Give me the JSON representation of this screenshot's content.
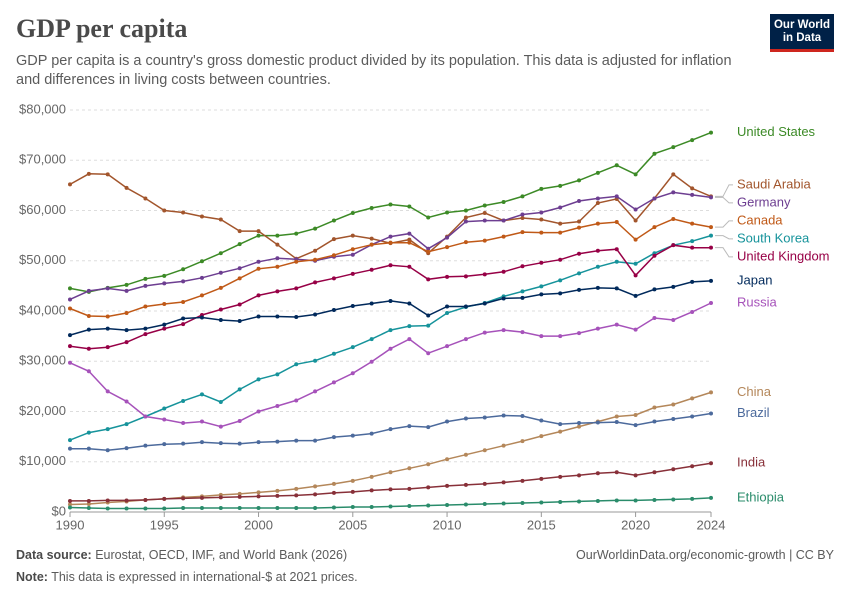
{
  "chart_data": {
    "type": "line",
    "title": "GDP per capita",
    "subtitle": "GDP per capita is a country's gross domestic product divided by its population. This data is adjusted for inflation and differences in living costs between countries.",
    "logo": [
      "Our World",
      "in Data"
    ],
    "source_label": "Data source:",
    "source": "Eurostat, OECD, IMF, and World Bank (2026)",
    "url": "OurWorldinData.org/economic-growth | CC BY",
    "note_label": "Note:",
    "note": "This data is expressed in international-$ at 2021 prices.",
    "grid": true,
    "xlim": [
      1990,
      2024
    ],
    "xticks": [
      1990,
      1995,
      2000,
      2005,
      2010,
      2015,
      2020,
      2024
    ],
    "ylim": [
      0,
      80000
    ],
    "yticks": [
      {
        "value": 0,
        "label": "$0"
      },
      {
        "value": 10000,
        "label": "$10,000"
      },
      {
        "value": 20000,
        "label": "$20,000"
      },
      {
        "value": 30000,
        "label": "$30,000"
      },
      {
        "value": 40000,
        "label": "$40,000"
      },
      {
        "value": 50000,
        "label": "$50,000"
      },
      {
        "value": 60000,
        "label": "$60,000"
      },
      {
        "value": 70000,
        "label": "$70,000"
      },
      {
        "value": 80000,
        "label": "$80,000"
      }
    ],
    "x": [
      1990,
      1991,
      1992,
      1993,
      1994,
      1995,
      1996,
      1997,
      1998,
      1999,
      2000,
      2001,
      2002,
      2003,
      2004,
      2005,
      2006,
      2007,
      2008,
      2009,
      2010,
      2011,
      2012,
      2013,
      2014,
      2015,
      2016,
      2017,
      2018,
      2019,
      2020,
      2021,
      2022,
      2023,
      2024
    ],
    "series": [
      {
        "name": "United States",
        "color": "#3c8a26",
        "values": [
          44500,
          43800,
          44600,
          45200,
          46400,
          47000,
          48300,
          49900,
          51500,
          53300,
          55000,
          55000,
          55400,
          56400,
          58000,
          59500,
          60500,
          61200,
          60800,
          58600,
          59600,
          60000,
          61000,
          61700,
          62800,
          64300,
          64900,
          66000,
          67500,
          69000,
          67200,
          71300,
          72600,
          74000,
          75500
        ]
      },
      {
        "name": "Saudi Arabia",
        "color": "#a2552c",
        "values": [
          65200,
          67300,
          67200,
          64500,
          62400,
          60000,
          59600,
          58800,
          58200,
          55900,
          55900,
          53200,
          50400,
          52000,
          54300,
          55000,
          54400,
          53500,
          54200,
          51500,
          54800,
          58600,
          59500,
          58000,
          58500,
          58200,
          57400,
          57800,
          61500,
          62300,
          58000,
          62400,
          67200,
          64400,
          62800
        ]
      },
      {
        "name": "Germany",
        "color": "#6d3e91",
        "values": [
          42300,
          44000,
          44500,
          44000,
          45000,
          45500,
          45900,
          46600,
          47600,
          48500,
          49800,
          50500,
          50300,
          50000,
          50800,
          51200,
          53200,
          54800,
          55400,
          52400,
          54600,
          57800,
          58000,
          58000,
          59200,
          59600,
          60600,
          61900,
          62400,
          62800,
          60200,
          62400,
          63600,
          63100,
          62600
        ]
      },
      {
        "name": "Canada",
        "color": "#c05917",
        "values": [
          40500,
          39000,
          38900,
          39600,
          40900,
          41400,
          41800,
          43100,
          44600,
          46500,
          48400,
          48800,
          49800,
          50200,
          51100,
          52300,
          53200,
          53600,
          53600,
          51800,
          52700,
          53700,
          54000,
          54800,
          55700,
          55600,
          55600,
          56600,
          57400,
          57700,
          54200,
          56700,
          58300,
          57400,
          56700
        ]
      },
      {
        "name": "South Korea",
        "color": "#16939b",
        "values": [
          14300,
          15800,
          16500,
          17500,
          19000,
          20600,
          22100,
          23400,
          21900,
          24400,
          26400,
          27400,
          29400,
          30100,
          31500,
          32800,
          34400,
          36200,
          37000,
          37100,
          39600,
          40800,
          41600,
          42900,
          43900,
          44900,
          46100,
          47500,
          48800,
          49800,
          49400,
          51500,
          53100,
          53900,
          55000
        ]
      },
      {
        "name": "United Kingdom",
        "color": "#970046",
        "values": [
          33000,
          32500,
          32800,
          33800,
          35400,
          36500,
          37400,
          39200,
          40300,
          41300,
          43100,
          43900,
          44500,
          45700,
          46500,
          47400,
          48200,
          49100,
          48800,
          46300,
          46800,
          46900,
          47300,
          47800,
          48900,
          49600,
          50200,
          51400,
          52000,
          52300,
          47100,
          51000,
          53100,
          52600,
          52600
        ]
      },
      {
        "name": "Japan",
        "color": "#00295b",
        "values": [
          35200,
          36300,
          36500,
          36200,
          36500,
          37300,
          38500,
          38700,
          38200,
          38000,
          38900,
          38900,
          38800,
          39300,
          40200,
          41000,
          41500,
          42000,
          41500,
          39100,
          40900,
          40900,
          41500,
          42500,
          42600,
          43300,
          43500,
          44200,
          44600,
          44500,
          43000,
          44300,
          44800,
          45800,
          46000
        ]
      },
      {
        "name": "Russia",
        "color": "#a652ba",
        "values": [
          29700,
          28000,
          24000,
          22000,
          19000,
          18400,
          17700,
          18000,
          17000,
          18100,
          20000,
          21100,
          22200,
          24000,
          25800,
          27600,
          29900,
          32500,
          34400,
          31600,
          33000,
          34400,
          35700,
          36200,
          35800,
          35000,
          35000,
          35600,
          36500,
          37300,
          36300,
          38600,
          38200,
          39800,
          41600
        ]
      },
      {
        "name": "China",
        "color": "#b4875a",
        "values": [
          1500,
          1600,
          1900,
          2100,
          2400,
          2600,
          2900,
          3100,
          3400,
          3600,
          3900,
          4200,
          4600,
          5100,
          5600,
          6200,
          7000,
          7900,
          8700,
          9500,
          10500,
          11400,
          12300,
          13200,
          14100,
          15100,
          16000,
          17000,
          18000,
          19000,
          19300,
          20800,
          21400,
          22600,
          23800
        ]
      },
      {
        "name": "Brazil",
        "color": "#4c6a9c",
        "values": [
          12600,
          12600,
          12300,
          12700,
          13200,
          13500,
          13600,
          13900,
          13700,
          13600,
          13900,
          14000,
          14200,
          14200,
          14900,
          15200,
          15600,
          16500,
          17100,
          16900,
          18000,
          18600,
          18800,
          19200,
          19100,
          18200,
          17500,
          17700,
          17800,
          17900,
          17300,
          18000,
          18500,
          19000,
          19600
        ]
      },
      {
        "name": "India",
        "color": "#883039",
        "values": [
          2200,
          2200,
          2300,
          2300,
          2400,
          2600,
          2700,
          2800,
          2900,
          3000,
          3100,
          3200,
          3300,
          3500,
          3800,
          4000,
          4300,
          4500,
          4600,
          4900,
          5200,
          5400,
          5600,
          5900,
          6200,
          6600,
          7000,
          7300,
          7700,
          7900,
          7300,
          7900,
          8500,
          9100,
          9700
        ]
      },
      {
        "name": "Ethiopia",
        "color": "#2a8c6b",
        "values": [
          900,
          800,
          700,
          700,
          700,
          700,
          800,
          800,
          800,
          800,
          800,
          800,
          800,
          800,
          900,
          1000,
          1000,
          1100,
          1200,
          1300,
          1400,
          1500,
          1600,
          1700,
          1800,
          1900,
          2000,
          2100,
          2200,
          2300,
          2300,
          2400,
          2500,
          2600,
          2800
        ]
      }
    ]
  }
}
